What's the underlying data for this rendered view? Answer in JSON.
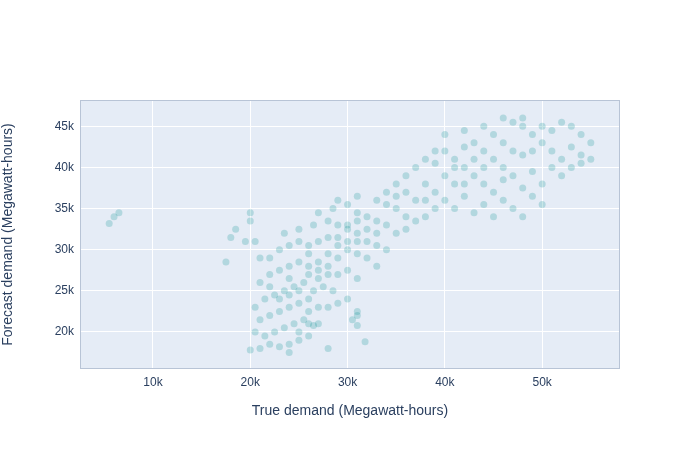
{
  "chart_data": {
    "type": "scatter",
    "x_label": "True demand (Megawatt-hours)",
    "y_label": "Forecast demand (Megawatt-hours)",
    "color": "#008b8b",
    "marker": "circle",
    "grid": true,
    "xlim": [
      2500,
      58000
    ],
    "ylim": [
      15500,
      48200
    ],
    "xticks": [
      {
        "value": 10000,
        "label": "10k"
      },
      {
        "value": 20000,
        "label": "20k"
      },
      {
        "value": 30000,
        "label": "30k"
      },
      {
        "value": 40000,
        "label": "40k"
      },
      {
        "value": 50000,
        "label": "50k"
      }
    ],
    "yticks": [
      {
        "value": 20000,
        "label": "20k"
      },
      {
        "value": 25000,
        "label": "25k"
      },
      {
        "value": 30000,
        "label": "30k"
      },
      {
        "value": 35000,
        "label": "35k"
      },
      {
        "value": 40000,
        "label": "40k"
      },
      {
        "value": 45000,
        "label": "45k"
      }
    ],
    "x": [
      21000,
      22000,
      23000,
      24000,
      25000,
      20000,
      21500,
      22500,
      23500,
      24500,
      25500,
      20500,
      21000,
      22000,
      23000,
      24000,
      25000,
      26000,
      27000,
      20500,
      21500,
      22500,
      23500,
      24500,
      25500,
      26500,
      27500,
      28500,
      21000,
      22000,
      23000,
      24000,
      25000,
      26000,
      27000,
      28000,
      29000,
      30000,
      22000,
      23000,
      24000,
      25000,
      26000,
      27000,
      28000,
      29000,
      30000,
      31000,
      23500,
      25000,
      26500,
      28000,
      29000,
      30000,
      31000,
      32000,
      33000,
      27000,
      28500,
      30000,
      31000,
      32000,
      33000,
      34000,
      35000,
      29000,
      31000,
      33000,
      34000,
      35000,
      36000,
      36000,
      37000,
      38000,
      26000,
      27000,
      28000,
      29000,
      30000,
      31000,
      32000,
      33000,
      26000,
      24000,
      23000,
      22000,
      27000,
      28000,
      25000,
      24000,
      26000,
      29000,
      30000,
      31000,
      32000,
      33000,
      34000,
      31000,
      30000,
      31000,
      30500,
      31000,
      31800,
      24000,
      26000,
      27000,
      28000,
      29000,
      25000,
      26000,
      35000,
      36000,
      37000,
      38000,
      39000,
      40000,
      41000,
      42000,
      43000,
      37000,
      38000,
      39000,
      40000,
      41000,
      42000,
      43000,
      44000,
      45000,
      46000,
      47000,
      48000,
      49000,
      50000,
      51000,
      52000,
      53000,
      54000,
      55000,
      44000,
      45000,
      46000,
      47000,
      48000,
      49000,
      50000,
      51000,
      52000,
      53000,
      54000,
      55000,
      44000,
      45000,
      46000,
      47000,
      48000,
      49000,
      50000,
      51000,
      52000,
      53000,
      54000,
      40000,
      41000,
      42000,
      43000,
      44000,
      45000,
      46000,
      47000,
      48000,
      49000,
      50000,
      39000,
      38000,
      36000,
      35000,
      34000,
      42000,
      41000,
      43000,
      39000,
      40000,
      42000,
      44000,
      46000,
      48000,
      5500,
      6000,
      6500,
      17500,
      18000,
      18500,
      20000,
      20000,
      19500,
      20500,
      21000,
      26500,
      31000,
      28000
    ],
    "values": [
      18000,
      18500,
      18200,
      18500,
      19000,
      17800,
      19500,
      20000,
      20500,
      21000,
      21500,
      20000,
      21500,
      22000,
      22500,
      23000,
      23500,
      22500,
      23000,
      23000,
      24000,
      24500,
      25000,
      25500,
      26000,
      25000,
      25500,
      25000,
      26000,
      27000,
      27500,
      28000,
      28500,
      28000,
      28500,
      28000,
      27000,
      27500,
      29000,
      30000,
      30500,
      31000,
      30500,
      31000,
      31500,
      30500,
      30000,
      29500,
      32000,
      32500,
      33000,
      33500,
      33000,
      32500,
      32000,
      31000,
      30500,
      34500,
      35000,
      35500,
      34500,
      34000,
      33500,
      33000,
      32000,
      36000,
      36500,
      36000,
      35500,
      35000,
      34000,
      32500,
      33500,
      34000,
      24000,
      26500,
      29500,
      29000,
      31000,
      31000,
      32500,
      32000,
      27000,
      26500,
      24000,
      25500,
      27500,
      27000,
      25000,
      24500,
      29500,
      31500,
      33000,
      33500,
      29000,
      28000,
      30000,
      26500,
      24000,
      22000,
      21500,
      20800,
      18800,
      17500,
      19500,
      21000,
      23000,
      23500,
      20000,
      21000,
      36500,
      37000,
      36000,
      38000,
      37000,
      39000,
      38000,
      40000,
      39000,
      40000,
      41000,
      40500,
      42000,
      41000,
      42500,
      43000,
      42000,
      44000,
      43000,
      45500,
      45000,
      44000,
      45000,
      44500,
      45500,
      45000,
      44000,
      43000,
      40000,
      41000,
      40000,
      42000,
      41500,
      42000,
      43000,
      42000,
      41000,
      42500,
      41500,
      41000,
      38000,
      37000,
      38500,
      39000,
      37500,
      39500,
      38000,
      40000,
      39000,
      40000,
      40500,
      36000,
      35000,
      36500,
      34500,
      35500,
      34000,
      36000,
      35000,
      34000,
      36500,
      35500,
      35000,
      36000,
      39000,
      38000,
      37000,
      38000,
      40000,
      41000,
      42000,
      44000,
      44500,
      45000,
      46000,
      46000,
      33200,
      34000,
      34500,
      28500,
      31500,
      32500,
      34500,
      33500,
      31000,
      31000,
      29000,
      20800,
      22500,
      18000
    ]
  }
}
